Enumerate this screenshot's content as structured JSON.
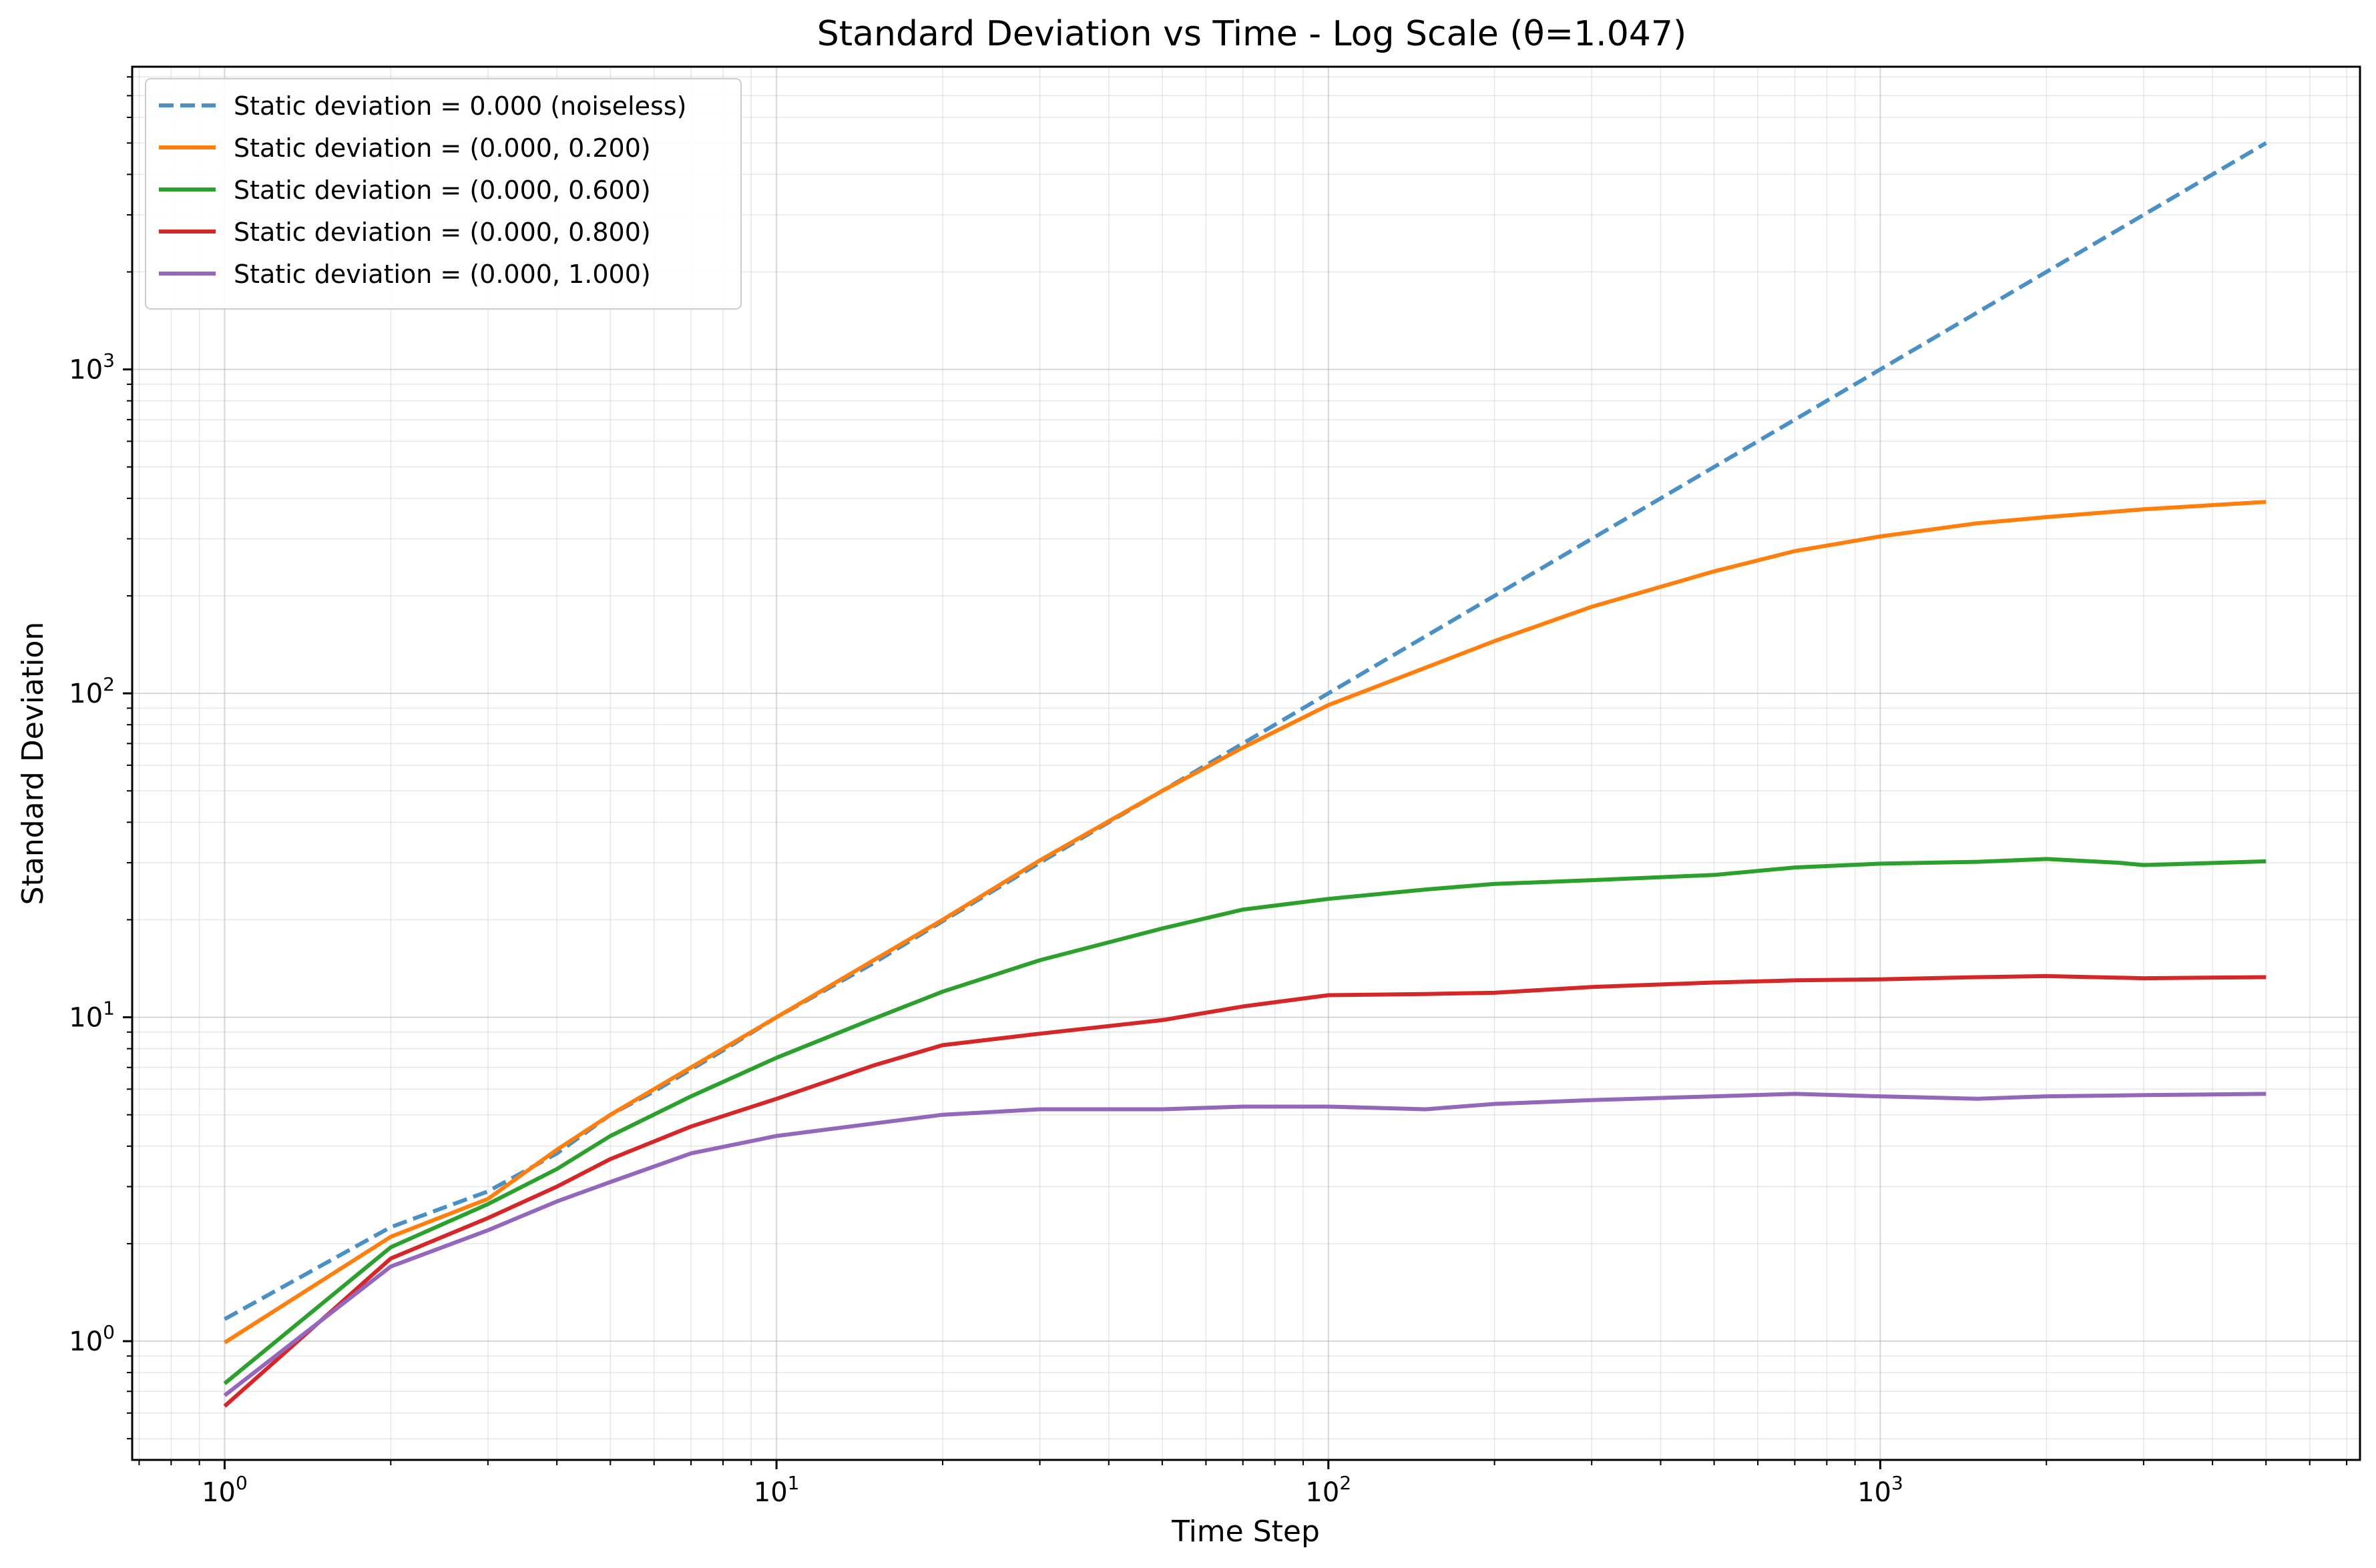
{
  "chart_data": {
    "type": "line",
    "title": "Standard Deviation vs Time - Log Scale (θ=1.047)",
    "xlabel": "Time Step",
    "ylabel": "Standard Deviation",
    "xscale": "log",
    "yscale": "log",
    "xlim": [
      0.68,
      7400
    ],
    "ylim": [
      0.43,
      8600
    ],
    "x_ticks": [
      {
        "value": 1,
        "exp": "0"
      },
      {
        "value": 10,
        "exp": "1"
      },
      {
        "value": 100,
        "exp": "2"
      },
      {
        "value": 1000,
        "exp": "3"
      }
    ],
    "y_ticks": [
      {
        "value": 1,
        "exp": "0"
      },
      {
        "value": 10,
        "exp": "1"
      },
      {
        "value": 100,
        "exp": "2"
      },
      {
        "value": 1000,
        "exp": "3"
      }
    ],
    "grid": true,
    "legend": "top-left",
    "series": [
      {
        "name": "Static deviation = 0.000 (noiseless)",
        "color": "#4a90c4",
        "dash": true,
        "points": [
          [
            1,
            1.17
          ],
          [
            2,
            2.25
          ],
          [
            3,
            2.9
          ],
          [
            4,
            3.8
          ],
          [
            5,
            5.0
          ],
          [
            6,
            5.9
          ],
          [
            8,
            7.9
          ],
          [
            10,
            10.0
          ],
          [
            15,
            14.7
          ],
          [
            20,
            19.8
          ],
          [
            30,
            30
          ],
          [
            50,
            50
          ],
          [
            70,
            70
          ],
          [
            100,
            100
          ],
          [
            200,
            200
          ],
          [
            300,
            300
          ],
          [
            500,
            500
          ],
          [
            700,
            700
          ],
          [
            1000,
            1000
          ],
          [
            2000,
            2000
          ],
          [
            3000,
            3000
          ],
          [
            5000,
            5000
          ]
        ]
      },
      {
        "name": "Static deviation = (0.000, 0.200)",
        "color": "#ff7f0e",
        "dash": false,
        "points": [
          [
            1,
            0.99
          ],
          [
            2,
            2.1
          ],
          [
            3,
            2.75
          ],
          [
            4,
            3.9
          ],
          [
            5,
            5.0
          ],
          [
            6,
            6.0
          ],
          [
            8,
            8.0
          ],
          [
            10,
            10.0
          ],
          [
            15,
            15.0
          ],
          [
            20,
            20.0
          ],
          [
            30,
            30.5
          ],
          [
            50,
            50
          ],
          [
            70,
            68
          ],
          [
            100,
            92
          ],
          [
            150,
            120
          ],
          [
            200,
            145
          ],
          [
            300,
            185
          ],
          [
            500,
            238
          ],
          [
            700,
            275
          ],
          [
            1000,
            305
          ],
          [
            1500,
            335
          ],
          [
            2000,
            350
          ],
          [
            3000,
            370
          ],
          [
            5000,
            390
          ]
        ]
      },
      {
        "name": "Static deviation = (0.000, 0.600)",
        "color": "#2ca02c",
        "dash": false,
        "points": [
          [
            1,
            0.74
          ],
          [
            2,
            1.95
          ],
          [
            3,
            2.65
          ],
          [
            4,
            3.4
          ],
          [
            5,
            4.3
          ],
          [
            7,
            5.7
          ],
          [
            10,
            7.5
          ],
          [
            15,
            9.9
          ],
          [
            20,
            12.0
          ],
          [
            30,
            15.0
          ],
          [
            50,
            18.8
          ],
          [
            70,
            21.5
          ],
          [
            100,
            23.2
          ],
          [
            150,
            24.8
          ],
          [
            200,
            25.8
          ],
          [
            300,
            26.5
          ],
          [
            500,
            27.5
          ],
          [
            700,
            29.0
          ],
          [
            1000,
            29.8
          ],
          [
            1500,
            30.2
          ],
          [
            2000,
            30.8
          ],
          [
            2700,
            30.0
          ],
          [
            3000,
            29.5
          ],
          [
            5000,
            30.3
          ]
        ]
      },
      {
        "name": "Static deviation = (0.000, 0.800)",
        "color": "#d62728",
        "dash": false,
        "points": [
          [
            1,
            0.63
          ],
          [
            2,
            1.8
          ],
          [
            3,
            2.4
          ],
          [
            4,
            3.0
          ],
          [
            5,
            3.65
          ],
          [
            7,
            4.6
          ],
          [
            10,
            5.6
          ],
          [
            15,
            7.1
          ],
          [
            20,
            8.2
          ],
          [
            30,
            8.9
          ],
          [
            50,
            9.8
          ],
          [
            70,
            10.8
          ],
          [
            100,
            11.7
          ],
          [
            150,
            11.8
          ],
          [
            200,
            11.9
          ],
          [
            300,
            12.4
          ],
          [
            500,
            12.8
          ],
          [
            700,
            13.0
          ],
          [
            1000,
            13.1
          ],
          [
            1500,
            13.3
          ],
          [
            2000,
            13.4
          ],
          [
            3000,
            13.2
          ],
          [
            5000,
            13.3
          ]
        ]
      },
      {
        "name": "Static deviation = (0.000, 1.000)",
        "color": "#9467bd",
        "dash": false,
        "points": [
          [
            1,
            0.68
          ],
          [
            2,
            1.7
          ],
          [
            3,
            2.2
          ],
          [
            4,
            2.7
          ],
          [
            5,
            3.1
          ],
          [
            7,
            3.8
          ],
          [
            10,
            4.3
          ],
          [
            15,
            4.7
          ],
          [
            20,
            5.0
          ],
          [
            30,
            5.2
          ],
          [
            50,
            5.2
          ],
          [
            70,
            5.3
          ],
          [
            100,
            5.3
          ],
          [
            150,
            5.2
          ],
          [
            200,
            5.4
          ],
          [
            300,
            5.55
          ],
          [
            500,
            5.7
          ],
          [
            700,
            5.8
          ],
          [
            1000,
            5.7
          ],
          [
            1500,
            5.6
          ],
          [
            2000,
            5.7
          ],
          [
            3000,
            5.75
          ],
          [
            5000,
            5.8
          ]
        ]
      }
    ]
  }
}
